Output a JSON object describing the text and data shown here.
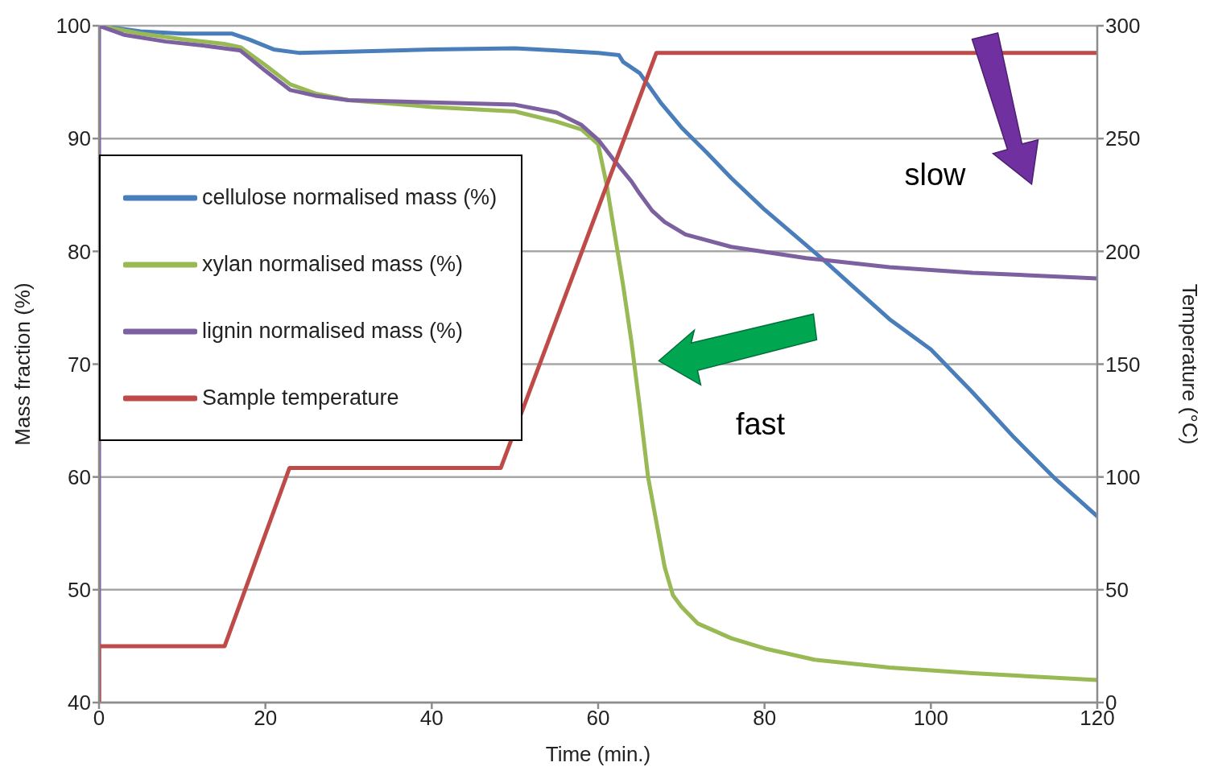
{
  "chart_data": {
    "type": "line",
    "xlabel": "Time (min.)",
    "ylabel": "Mass fraction (%)",
    "y2label": "Temperature (°C)",
    "xlim": [
      0,
      120
    ],
    "xticks": [
      0,
      20,
      40,
      60,
      80,
      100,
      120
    ],
    "ylim": [
      40,
      100
    ],
    "yticks": [
      40,
      50,
      60,
      70,
      80,
      90,
      100
    ],
    "y2lim": [
      0,
      300
    ],
    "y2ticks": [
      0,
      50,
      100,
      150,
      200,
      250,
      300
    ],
    "grid": "y",
    "legend": "top left",
    "marker": "none",
    "line_style": "solid",
    "annotations": [
      "slow",
      "fast"
    ],
    "series": [
      {
        "name": "cellulose normalised mass (%)",
        "color": "#4a7ebb",
        "x": [
          0,
          5,
          10,
          16,
          18,
          21,
          24,
          30,
          40,
          50,
          55,
          60,
          62.5,
          63,
          65,
          67.5,
          70,
          73,
          76,
          80,
          87,
          90,
          95,
          100,
          105,
          110,
          115,
          120
        ],
        "values": [
          100,
          99.5,
          99.3,
          99.3,
          98.8,
          97.9,
          97.6,
          97.7,
          97.9,
          98,
          97.8,
          97.6,
          97.4,
          96.8,
          95.8,
          93.2,
          91,
          88.8,
          86.5,
          83.7,
          79.3,
          77.3,
          74,
          71.3,
          67.5,
          63.5,
          59.8,
          56.5
        ]
      },
      {
        "name": "xylan normalised mass (%)",
        "color": "#98b954",
        "x": [
          0,
          5,
          10,
          15,
          17,
          20,
          23,
          26,
          30,
          40,
          50,
          55,
          58,
          60,
          61,
          62,
          63,
          64,
          65,
          66,
          67,
          68,
          69,
          70,
          72,
          76,
          80,
          86,
          95,
          105,
          120
        ],
        "values": [
          100,
          99.3,
          98.8,
          98.4,
          98.1,
          96.5,
          94.8,
          94,
          93.4,
          92.8,
          92.4,
          91.5,
          90.8,
          89.5,
          86,
          81.5,
          77,
          72,
          66.2,
          60,
          56,
          52,
          49.5,
          48.5,
          47,
          45.7,
          44.8,
          43.8,
          43.1,
          42.6,
          42
        ]
      },
      {
        "name": "lignin normalised mass (%)",
        "color": "#7d60a0",
        "x": [
          0,
          0,
          3,
          8,
          13,
          17,
          20,
          23,
          26,
          30,
          40,
          50,
          55,
          58,
          60,
          62,
          64,
          65,
          66.5,
          68,
          70.5,
          76,
          85,
          95,
          105,
          120
        ],
        "values": [
          40,
          100,
          99.2,
          98.6,
          98.2,
          97.8,
          96,
          94.3,
          93.8,
          93.4,
          93.2,
          93,
          92.3,
          91.2,
          89.9,
          88,
          86.2,
          85.1,
          83.6,
          82.6,
          81.5,
          80.4,
          79.4,
          78.6,
          78.1,
          77.6
        ]
      },
      {
        "name": "Sample temperature",
        "color": "#be4b48",
        "axis": "y2",
        "x": [
          0,
          0,
          15.1,
          22.9,
          48.3,
          67,
          120
        ],
        "values": [
          0,
          25,
          25,
          104,
          104,
          288,
          288
        ]
      }
    ]
  }
}
